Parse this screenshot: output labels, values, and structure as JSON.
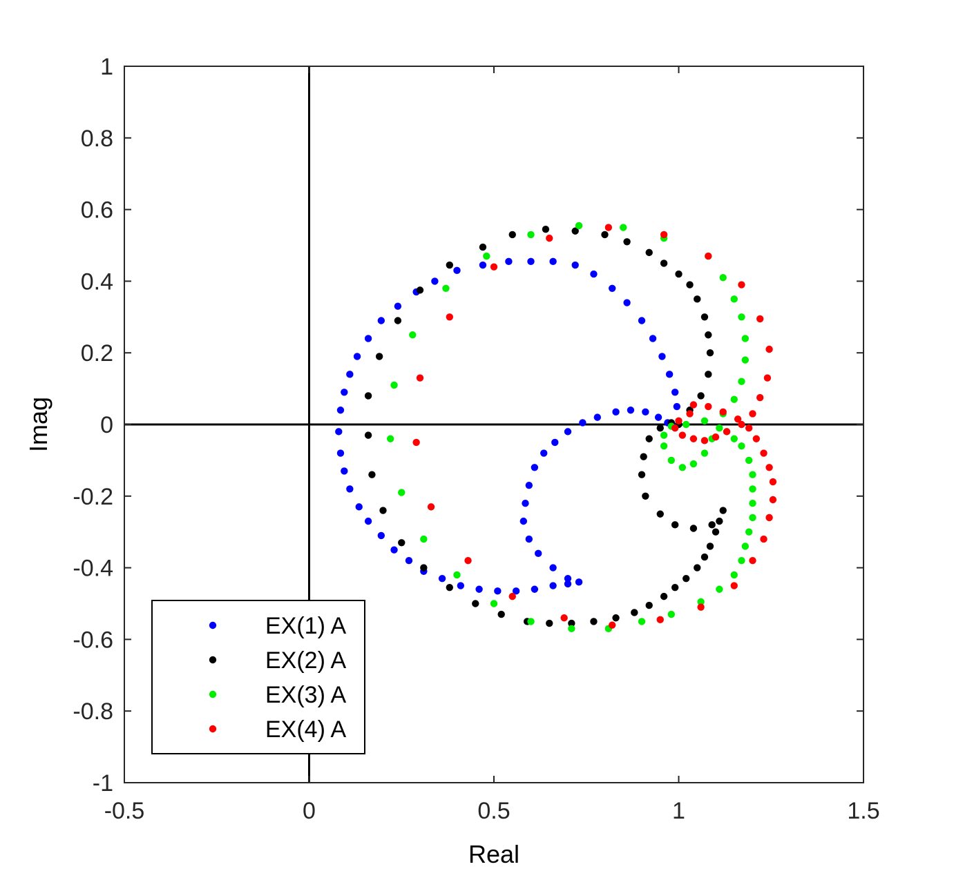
{
  "chart_data": {
    "type": "scatter",
    "title": "",
    "xlabel": "Real",
    "ylabel": "Imag",
    "xlim": [
      -0.5,
      1.5
    ],
    "ylim": [
      -1,
      1
    ],
    "xticks": [
      "-0.5",
      "0",
      "0.5",
      "1",
      "1.5"
    ],
    "yticks": [
      "1",
      "0.8",
      "0.6",
      "0.4",
      "0.2",
      "0",
      "-0.2",
      "-0.4",
      "-0.6",
      "-0.8",
      "-1"
    ],
    "grid": false,
    "zero_lines": true,
    "legend_position": "bottom-left",
    "series": [
      {
        "name": "EX(1) A",
        "color": "#0000ff",
        "points": [
          [
            0.995,
            0.05
          ],
          [
            0.99,
            0.09
          ],
          [
            0.975,
            0.14
          ],
          [
            0.955,
            0.19
          ],
          [
            0.93,
            0.24
          ],
          [
            0.9,
            0.29
          ],
          [
            0.86,
            0.34
          ],
          [
            0.82,
            0.38
          ],
          [
            0.77,
            0.42
          ],
          [
            0.72,
            0.445
          ],
          [
            0.66,
            0.455
          ],
          [
            0.6,
            0.455
          ],
          [
            0.54,
            0.455
          ],
          [
            0.47,
            0.445
          ],
          [
            0.4,
            0.43
          ],
          [
            0.34,
            0.4
          ],
          [
            0.29,
            0.37
          ],
          [
            0.24,
            0.33
          ],
          [
            0.195,
            0.29
          ],
          [
            0.16,
            0.24
          ],
          [
            0.13,
            0.19
          ],
          [
            0.11,
            0.14
          ],
          [
            0.095,
            0.09
          ],
          [
            0.085,
            0.04
          ],
          [
            0.08,
            -0.02
          ],
          [
            0.085,
            -0.08
          ],
          [
            0.095,
            -0.13
          ],
          [
            0.11,
            -0.18
          ],
          [
            0.135,
            -0.23
          ],
          [
            0.16,
            -0.27
          ],
          [
            0.195,
            -0.31
          ],
          [
            0.23,
            -0.35
          ],
          [
            0.27,
            -0.38
          ],
          [
            0.31,
            -0.41
          ],
          [
            0.36,
            -0.43
          ],
          [
            0.41,
            -0.45
          ],
          [
            0.46,
            -0.46
          ],
          [
            0.51,
            -0.465
          ],
          [
            0.56,
            -0.465
          ],
          [
            0.61,
            -0.46
          ],
          [
            0.66,
            -0.45
          ],
          [
            0.7,
            -0.445
          ],
          [
            0.73,
            -0.44
          ],
          [
            0.7,
            -0.43
          ],
          [
            0.66,
            -0.4
          ],
          [
            0.62,
            -0.36
          ],
          [
            0.595,
            -0.32
          ],
          [
            0.58,
            -0.27
          ],
          [
            0.585,
            -0.22
          ],
          [
            0.595,
            -0.17
          ],
          [
            0.61,
            -0.12
          ],
          [
            0.635,
            -0.08
          ],
          [
            0.665,
            -0.05
          ],
          [
            0.7,
            -0.02
          ],
          [
            0.74,
            0.005
          ],
          [
            0.78,
            0.02
          ],
          [
            0.83,
            0.035
          ],
          [
            0.87,
            0.04
          ],
          [
            0.91,
            0.035
          ],
          [
            0.945,
            0.02
          ],
          [
            0.97,
            0.005
          ],
          [
            0.99,
            -0.005
          ]
        ]
      },
      {
        "name": "EX(2) A",
        "color": "#000000",
        "points": [
          [
            1.0,
            0.0
          ],
          [
            1.03,
            0.04
          ],
          [
            1.06,
            0.08
          ],
          [
            1.08,
            0.14
          ],
          [
            1.085,
            0.2
          ],
          [
            1.08,
            0.25
          ],
          [
            1.07,
            0.3
          ],
          [
            1.05,
            0.35
          ],
          [
            1.03,
            0.39
          ],
          [
            1.0,
            0.42
          ],
          [
            0.96,
            0.45
          ],
          [
            0.92,
            0.48
          ],
          [
            0.86,
            0.51
          ],
          [
            0.8,
            0.53
          ],
          [
            0.72,
            0.54
          ],
          [
            0.64,
            0.545
          ],
          [
            0.55,
            0.53
          ],
          [
            0.47,
            0.495
          ],
          [
            0.38,
            0.445
          ],
          [
            0.3,
            0.375
          ],
          [
            0.24,
            0.29
          ],
          [
            0.19,
            0.19
          ],
          [
            0.16,
            0.08
          ],
          [
            0.16,
            -0.03
          ],
          [
            0.17,
            -0.14
          ],
          [
            0.2,
            -0.24
          ],
          [
            0.25,
            -0.33
          ],
          [
            0.31,
            -0.4
          ],
          [
            0.38,
            -0.455
          ],
          [
            0.45,
            -0.5
          ],
          [
            0.52,
            -0.53
          ],
          [
            0.59,
            -0.55
          ],
          [
            0.65,
            -0.555
          ],
          [
            0.71,
            -0.555
          ],
          [
            0.77,
            -0.55
          ],
          [
            0.83,
            -0.54
          ],
          [
            0.88,
            -0.525
          ],
          [
            0.92,
            -0.505
          ],
          [
            0.96,
            -0.48
          ],
          [
            0.99,
            -0.455
          ],
          [
            1.02,
            -0.43
          ],
          [
            1.05,
            -0.4
          ],
          [
            1.07,
            -0.37
          ],
          [
            1.085,
            -0.34
          ],
          [
            1.1,
            -0.3
          ],
          [
            1.11,
            -0.27
          ],
          [
            1.12,
            -0.24
          ],
          [
            1.09,
            -0.28
          ],
          [
            1.04,
            -0.29
          ],
          [
            0.99,
            -0.28
          ],
          [
            0.95,
            -0.25
          ],
          [
            0.91,
            -0.2
          ],
          [
            0.9,
            -0.14
          ],
          [
            0.905,
            -0.09
          ],
          [
            0.92,
            -0.04
          ],
          [
            0.95,
            -0.01
          ],
          [
            0.98,
            0.005
          ]
        ]
      },
      {
        "name": "EX(3) A",
        "color": "#00ee00",
        "points": [
          [
            1.02,
            0.0
          ],
          [
            1.07,
            0.01
          ],
          [
            1.12,
            0.03
          ],
          [
            1.15,
            0.07
          ],
          [
            1.17,
            0.12
          ],
          [
            1.18,
            0.18
          ],
          [
            1.18,
            0.24
          ],
          [
            1.17,
            0.3
          ],
          [
            1.15,
            0.35
          ],
          [
            1.12,
            0.41
          ],
          [
            1.08,
            0.47
          ],
          [
            0.96,
            0.52
          ],
          [
            0.85,
            0.55
          ],
          [
            0.73,
            0.555
          ],
          [
            0.6,
            0.53
          ],
          [
            0.48,
            0.47
          ],
          [
            0.37,
            0.38
          ],
          [
            0.28,
            0.25
          ],
          [
            0.23,
            0.11
          ],
          [
            0.22,
            -0.04
          ],
          [
            0.25,
            -0.19
          ],
          [
            0.31,
            -0.32
          ],
          [
            0.4,
            -0.42
          ],
          [
            0.5,
            -0.5
          ],
          [
            0.6,
            -0.55
          ],
          [
            0.71,
            -0.57
          ],
          [
            0.81,
            -0.57
          ],
          [
            0.9,
            -0.55
          ],
          [
            0.98,
            -0.53
          ],
          [
            1.06,
            -0.495
          ],
          [
            1.11,
            -0.46
          ],
          [
            1.15,
            -0.42
          ],
          [
            1.17,
            -0.38
          ],
          [
            1.18,
            -0.34
          ],
          [
            1.19,
            -0.3
          ],
          [
            1.2,
            -0.26
          ],
          [
            1.2,
            -0.22
          ],
          [
            1.2,
            -0.18
          ],
          [
            1.2,
            -0.14
          ],
          [
            1.19,
            -0.1
          ],
          [
            1.17,
            -0.06
          ],
          [
            1.15,
            -0.04
          ],
          [
            1.13,
            -0.02
          ],
          [
            1.11,
            -0.01
          ],
          [
            1.09,
            -0.04
          ],
          [
            1.07,
            -0.08
          ],
          [
            1.04,
            -0.11
          ],
          [
            1.01,
            -0.12
          ],
          [
            0.98,
            -0.1
          ],
          [
            0.96,
            -0.06
          ],
          [
            0.96,
            -0.03
          ],
          [
            0.98,
            -0.005
          ]
        ]
      },
      {
        "name": "EX(4) A",
        "color": "#ff0000",
        "points": [
          [
            1.04,
            0.055
          ],
          [
            1.08,
            0.05
          ],
          [
            1.12,
            0.035
          ],
          [
            1.16,
            0.015
          ],
          [
            1.19,
            -0.01
          ],
          [
            1.21,
            -0.04
          ],
          [
            1.23,
            -0.08
          ],
          [
            1.245,
            -0.12
          ],
          [
            1.255,
            -0.16
          ],
          [
            1.255,
            -0.21
          ],
          [
            1.245,
            -0.26
          ],
          [
            1.23,
            -0.32
          ],
          [
            1.2,
            -0.38
          ],
          [
            1.15,
            -0.45
          ],
          [
            1.06,
            -0.51
          ],
          [
            0.95,
            -0.545
          ],
          [
            0.82,
            -0.56
          ],
          [
            0.69,
            -0.54
          ],
          [
            0.55,
            -0.48
          ],
          [
            0.43,
            -0.38
          ],
          [
            0.33,
            -0.23
          ],
          [
            0.29,
            -0.05
          ],
          [
            0.3,
            0.13
          ],
          [
            0.38,
            0.3
          ],
          [
            0.5,
            0.44
          ],
          [
            0.65,
            0.52
          ],
          [
            0.81,
            0.55
          ],
          [
            0.96,
            0.53
          ],
          [
            1.08,
            0.47
          ],
          [
            1.17,
            0.39
          ],
          [
            1.22,
            0.295
          ],
          [
            1.245,
            0.21
          ],
          [
            1.24,
            0.13
          ],
          [
            1.22,
            0.075
          ],
          [
            1.2,
            0.03
          ],
          [
            1.17,
            0.0
          ],
          [
            1.13,
            -0.02
          ],
          [
            1.1,
            -0.035
          ],
          [
            1.07,
            -0.045
          ],
          [
            1.04,
            -0.04
          ],
          [
            1.01,
            -0.03
          ],
          [
            0.99,
            -0.01
          ],
          [
            1.0,
            0.01
          ],
          [
            1.03,
            0.03
          ]
        ]
      }
    ]
  }
}
